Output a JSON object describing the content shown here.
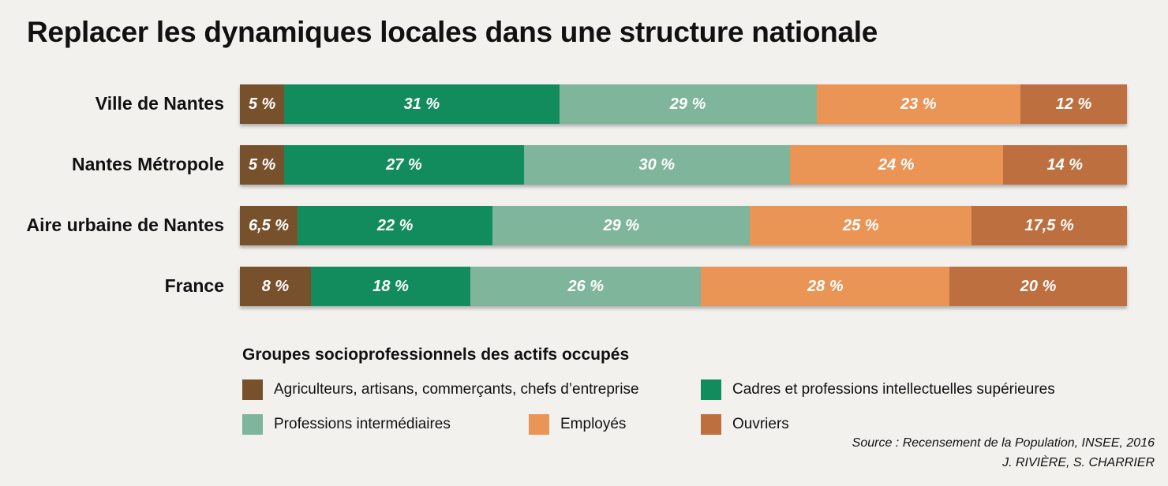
{
  "chart_data": {
    "type": "bar",
    "orientation": "horizontal",
    "stacked": true,
    "normalized_100": true,
    "title": "Replacer les dynamiques locales dans une structure nationale",
    "categories": [
      "Ville de Nantes",
      "Nantes Métropole",
      "Aire urbaine de Nantes",
      "France"
    ],
    "series": [
      {
        "name": "Agriculteurs, artisans, commerçants, chefs d’entreprise",
        "color": "#76512b",
        "values": [
          5,
          5,
          6.5,
          8
        ],
        "labels": [
          "5 %",
          "5 %",
          "6,5 %",
          "8 %"
        ]
      },
      {
        "name": "Cadres et professions intellectuelles supérieures",
        "color": "#138c5d",
        "values": [
          31,
          27,
          22,
          18
        ],
        "labels": [
          "31 %",
          "27 %",
          "22 %",
          "18 %"
        ]
      },
      {
        "name": "Professions intermédiaires",
        "color": "#7fb59a",
        "values": [
          29,
          30,
          29,
          26
        ],
        "labels": [
          "29 %",
          "30  %",
          "29 %",
          "26 %"
        ]
      },
      {
        "name": "Employés",
        "color": "#ea9455",
        "values": [
          23,
          24,
          25,
          28
        ],
        "labels": [
          "23 %",
          "24 %",
          "25 %",
          "28 %"
        ]
      },
      {
        "name": "Ouvriers",
        "color": "#bd6f3f",
        "values": [
          12,
          14,
          17.5,
          20
        ],
        "labels": [
          "12 %",
          "14 %",
          "17,5 %",
          "20 %"
        ]
      }
    ],
    "legend": {
      "title": "Groupes socioprofessionnels des actifs occupés",
      "placement": "bottom"
    }
  },
  "source": "Source : Recensement de la Population, INSEE, 2016",
  "authors": "J. RIVIÈRE, S. CHARRIER"
}
